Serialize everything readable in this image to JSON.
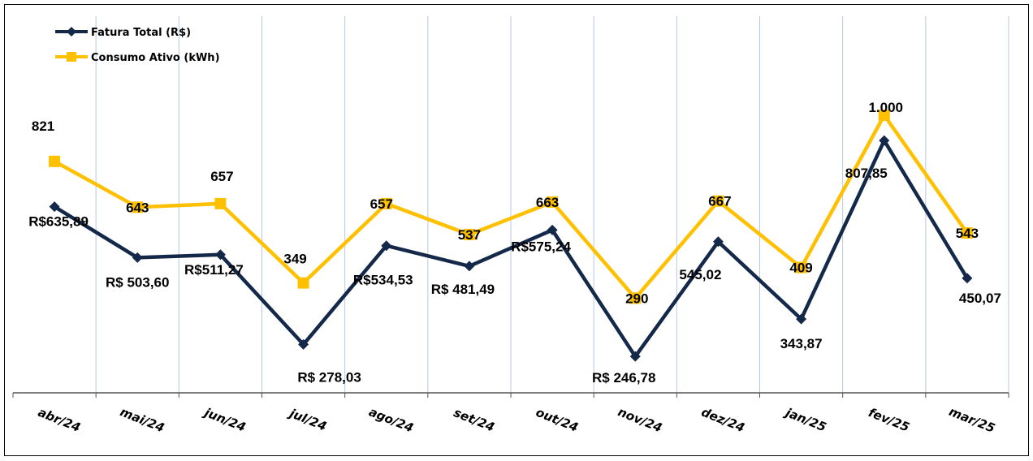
{
  "chart_data": {
    "type": "line",
    "title": "",
    "xlabel": "",
    "ylabel": "",
    "grid": "vertical",
    "legend": "top-left",
    "categories": [
      "abr/24",
      "mai/24",
      "jun/24",
      "jul/24",
      "ago/24",
      "set/24",
      "out/24",
      "nov/24",
      "dez/24",
      "jan/25",
      "fev/25",
      "mar/25"
    ],
    "series": [
      {
        "name": "Fatura Total (R$)",
        "color": "#14294a",
        "marker": "diamond",
        "values": [
          635.89,
          503.6,
          511.27,
          278.03,
          534.53,
          481.49,
          575.24,
          246.78,
          545.02,
          343.87,
          807.85,
          450.07
        ],
        "labels": [
          "R$635,89",
          "R$ 503,60",
          "R$511,27",
          "R$ 278,03",
          "R$534,53",
          "R$ 481,49",
          "R$575,24",
          "R$ 246,78",
          "545,02",
          "343,87",
          "807,85",
          "450,07"
        ]
      },
      {
        "name": "Consumo Ativo (kWh)",
        "color": "#ffc000",
        "marker": "square",
        "values": [
          821,
          643,
          657,
          349,
          657,
          537,
          663,
          290,
          667,
          409,
          1000,
          543
        ],
        "labels": [
          "821",
          "643",
          "657",
          "349",
          "657",
          "537",
          "663",
          "290",
          "667",
          "409",
          "1.000",
          "543"
        ]
      }
    ]
  }
}
